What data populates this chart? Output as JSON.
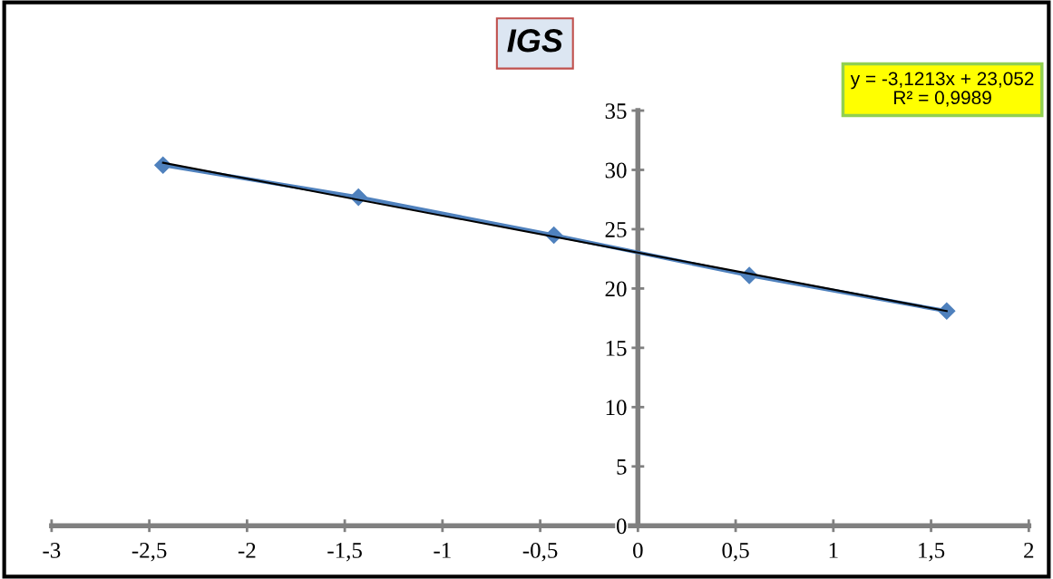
{
  "chart_data": {
    "type": "line",
    "title": "IGS",
    "series": [
      {
        "color": "#4f81bd",
        "x": [
          -2.43,
          -1.43,
          -0.43,
          0.57,
          1.58
        ],
        "values": [
          30.4,
          27.7,
          24.5,
          21.1,
          18.1
        ],
        "marker": "diamond",
        "line_style": "solid"
      },
      {
        "color": "#000000",
        "x": [
          -2.43,
          1.58
        ],
        "values": [
          30.6,
          18.1
        ],
        "marker": "none",
        "line_style": "solid"
      }
    ],
    "xlim": [
      -3,
      2
    ],
    "ylim": [
      0,
      35
    ],
    "xticks": [
      -3,
      {
        "value": -2.5,
        "label": "-2,5"
      },
      -2,
      {
        "value": -1.5,
        "label": "-1,5"
      },
      -1,
      {
        "value": -0.5,
        "label": "-0,5"
      },
      0,
      {
        "value": 0.5,
        "label": "0,5"
      },
      1,
      {
        "value": 1.5,
        "label": "1,5"
      },
      2
    ],
    "yticks": [
      0,
      5,
      10,
      15,
      20,
      25,
      30,
      35
    ],
    "grid": false,
    "legend": false,
    "annotations": [
      "y = -3,1213x + 23,052",
      "R² = 0,9989"
    ]
  }
}
